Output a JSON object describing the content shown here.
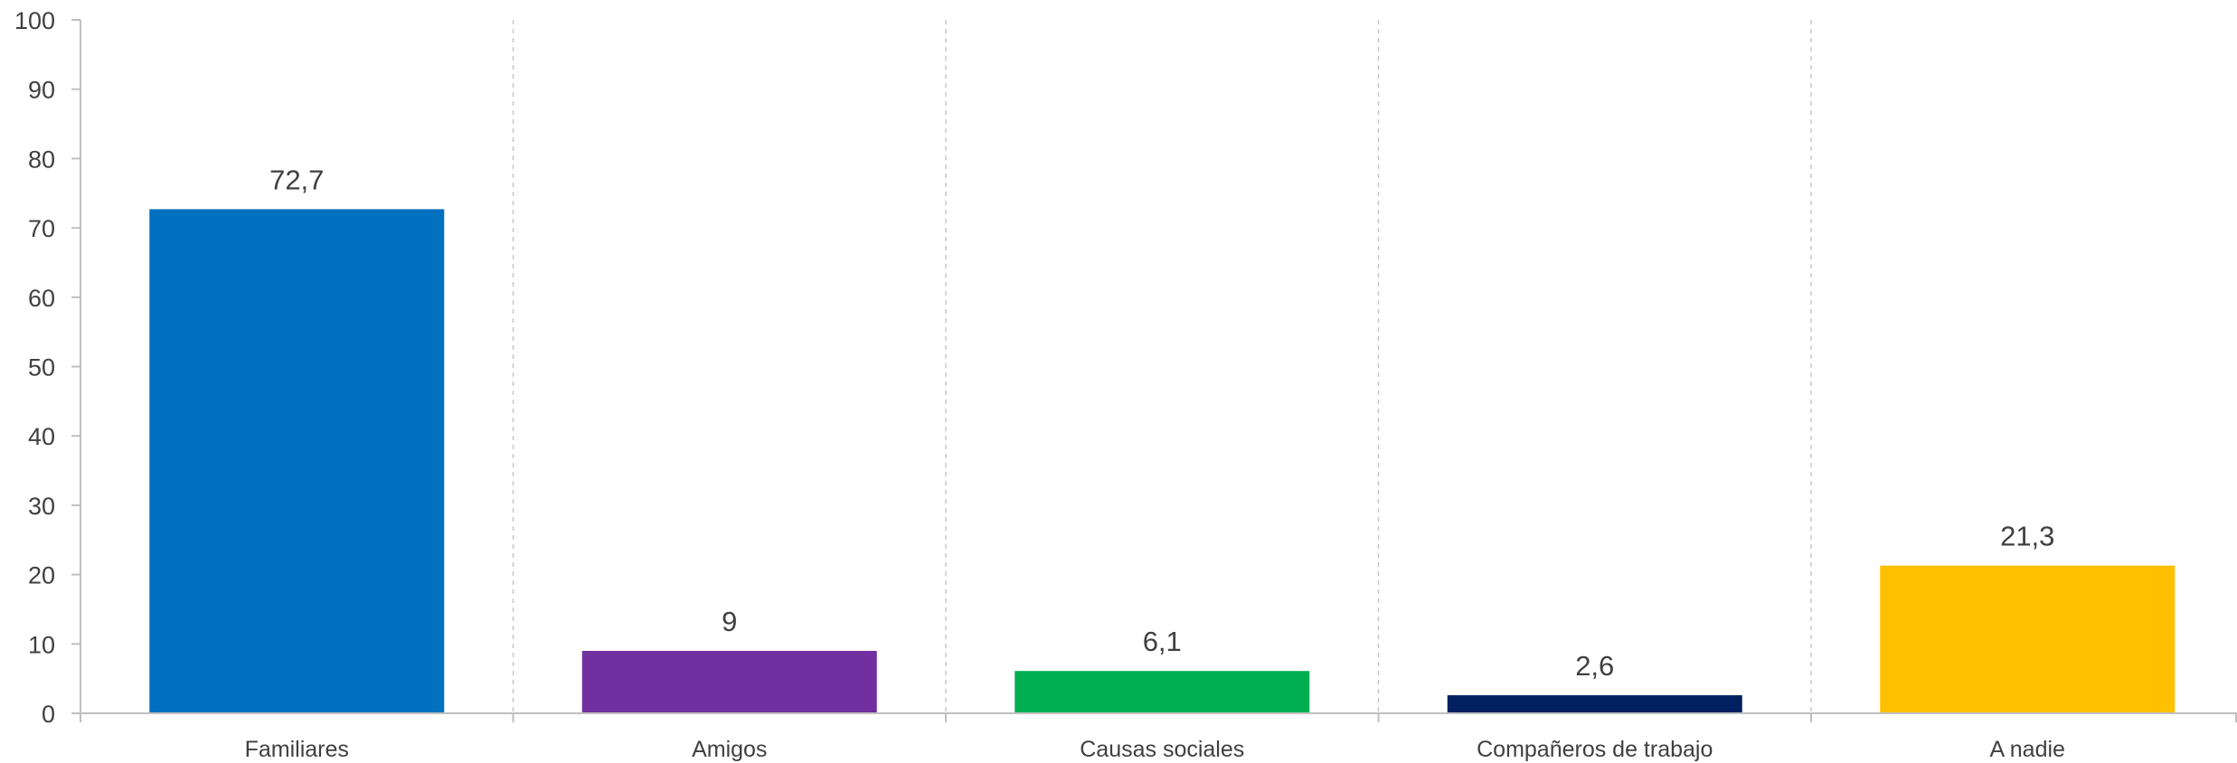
{
  "chart_data": {
    "type": "bar",
    "categories": [
      "Familiares",
      "Amigos",
      "Causas sociales",
      "Compañeros de trabajo",
      "A nadie"
    ],
    "values": [
      72.7,
      9,
      6.1,
      2.6,
      21.3
    ],
    "data_labels": [
      "72,7",
      "9",
      "6,1",
      "2,6",
      "21,3"
    ],
    "colors": [
      "#0070C0",
      "#7030A0",
      "#00B050",
      "#002060",
      "#FFC000"
    ],
    "ylim": [
      0,
      100
    ],
    "yticks": [
      0,
      10,
      20,
      30,
      40,
      50,
      60,
      70,
      80,
      90,
      100
    ],
    "grid": "vertical dashed separators between categories",
    "legend": "none",
    "title": "",
    "xlabel": "",
    "ylabel": ""
  }
}
